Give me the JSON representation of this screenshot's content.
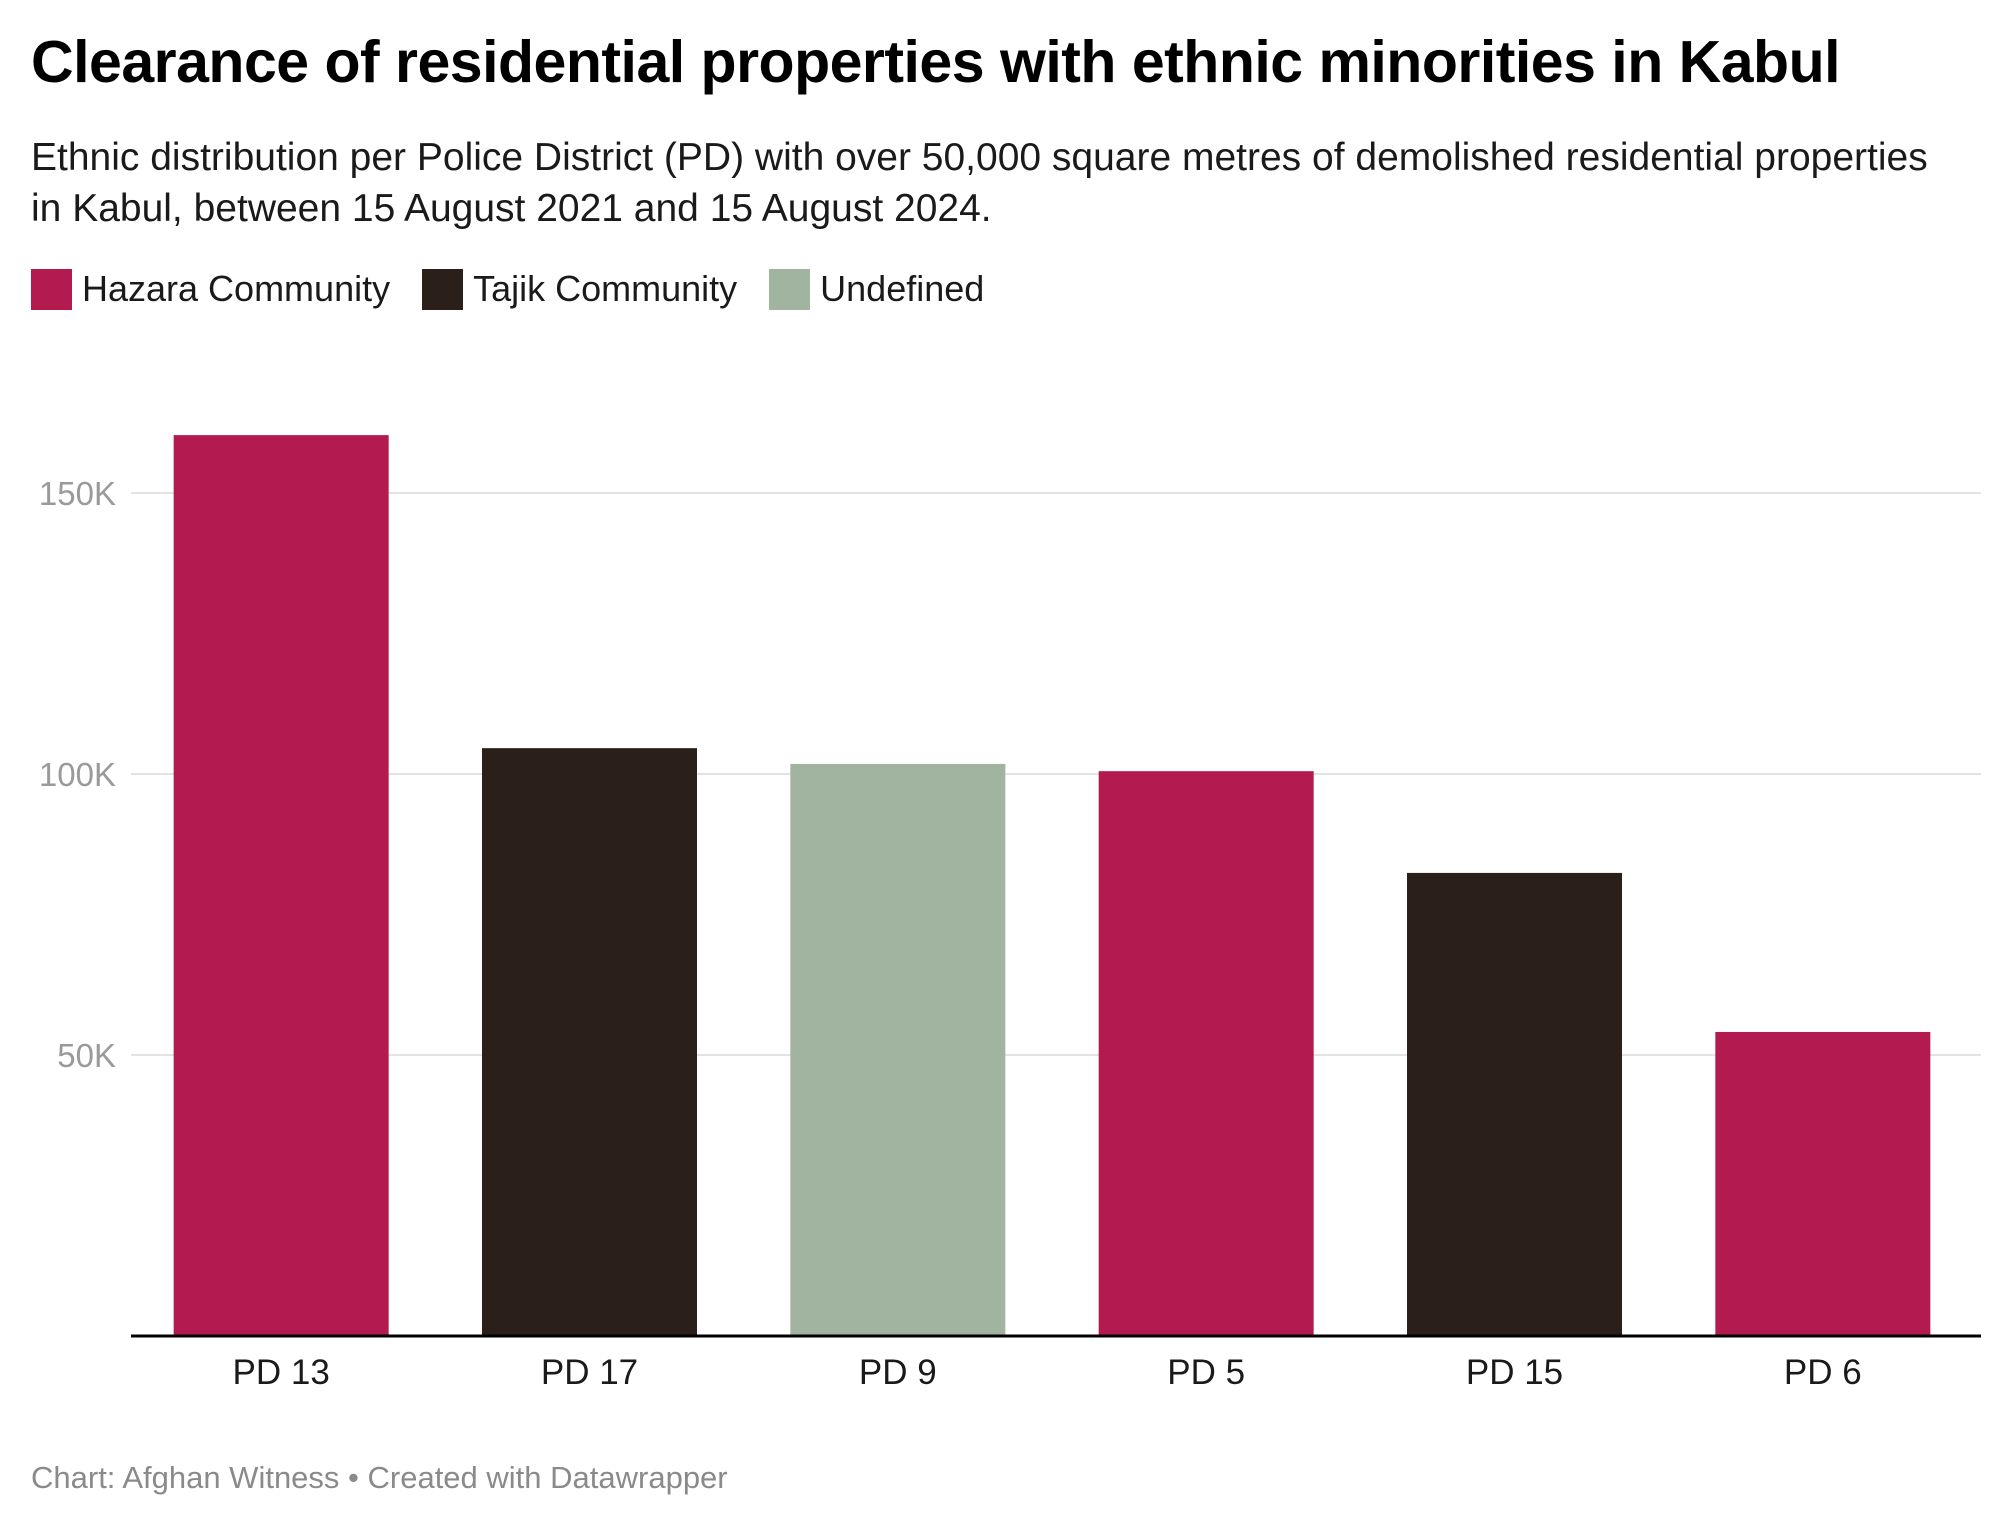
{
  "title": "Clearance of residential properties with ethnic minorities in Kabul",
  "subtitle": "Ethnic distribution per Police District (PD) with over 50,000 square metres of demolished residential properties in Kabul, between 15 August 2021 and 15 August 2024.",
  "legend": [
    {
      "label": "Hazara Community",
      "color": "#b31a50"
    },
    {
      "label": "Tajik Community",
      "color": "#2a2019"
    },
    {
      "label": "Undefined",
      "color": "#a0b4a0"
    }
  ],
  "footer": "Chart: Afghan Witness • Created with Datawrapper",
  "chart_data": {
    "type": "bar",
    "title": "Clearance of residential properties with ethnic minorities in Kabul",
    "xlabel": "",
    "ylabel": "",
    "categories": [
      "PD 13",
      "PD 17",
      "PD 9",
      "PD 5",
      "PD 15",
      "PD 6"
    ],
    "values": [
      160300,
      104600,
      101800,
      100500,
      82400,
      54100
    ],
    "groups": [
      "Hazara Community",
      "Tajik Community",
      "Undefined",
      "Hazara Community",
      "Tajik Community",
      "Hazara Community"
    ],
    "colors": [
      "#b31a50",
      "#2a2019",
      "#a0b4a0",
      "#b31a50",
      "#2a2019",
      "#b31a50"
    ],
    "yticks": [
      50000,
      100000,
      150000
    ],
    "ytick_labels": [
      "50K",
      "100K",
      "150K"
    ],
    "ylim": [
      0,
      165000
    ],
    "grid": true,
    "legend_position": "top-left"
  }
}
